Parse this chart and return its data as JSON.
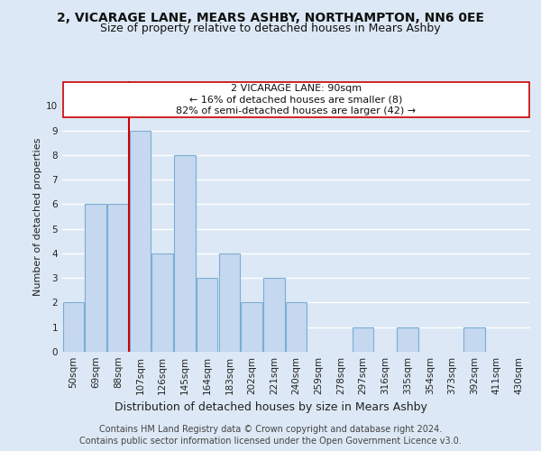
{
  "title": "2, VICARAGE LANE, MEARS ASHBY, NORTHAMPTON, NN6 0EE",
  "subtitle": "Size of property relative to detached houses in Mears Ashby",
  "xlabel": "Distribution of detached houses by size in Mears Ashby",
  "ylabel": "Number of detached properties",
  "categories": [
    "50sqm",
    "69sqm",
    "88sqm",
    "107sqm",
    "126sqm",
    "145sqm",
    "164sqm",
    "183sqm",
    "202sqm",
    "221sqm",
    "240sqm",
    "259sqm",
    "278sqm",
    "297sqm",
    "316sqm",
    "335sqm",
    "354sqm",
    "373sqm",
    "392sqm",
    "411sqm",
    "430sqm"
  ],
  "values": [
    2,
    6,
    6,
    9,
    4,
    8,
    3,
    4,
    2,
    3,
    2,
    0,
    0,
    1,
    0,
    1,
    0,
    0,
    1,
    0,
    0
  ],
  "bar_color": "#c5d8f0",
  "bar_edge_color": "#7aadd4",
  "vline_x": 2.5,
  "annotation_line1": "2 VICARAGE LANE: 90sqm",
  "annotation_line2": "← 16% of detached houses are smaller (8)",
  "annotation_line3": "82% of semi-detached houses are larger (42) →",
  "vline_color": "#cc0000",
  "annotation_box_facecolor": "#ffffff",
  "annotation_box_edgecolor": "#cc0000",
  "ylim": [
    0,
    11
  ],
  "yticks": [
    0,
    1,
    2,
    3,
    4,
    5,
    6,
    7,
    8,
    9,
    10
  ],
  "footer1": "Contains HM Land Registry data © Crown copyright and database right 2024.",
  "footer2": "Contains public sector information licensed under the Open Government Licence v3.0.",
  "fig_facecolor": "#dce8f5",
  "axes_facecolor": "#dce8f5",
  "grid_color": "#ffffff",
  "title_fontsize": 10,
  "subtitle_fontsize": 9,
  "xlabel_fontsize": 9,
  "ylabel_fontsize": 8,
  "tick_fontsize": 7.5,
  "footer_fontsize": 7,
  "annotation_fontsize": 8
}
